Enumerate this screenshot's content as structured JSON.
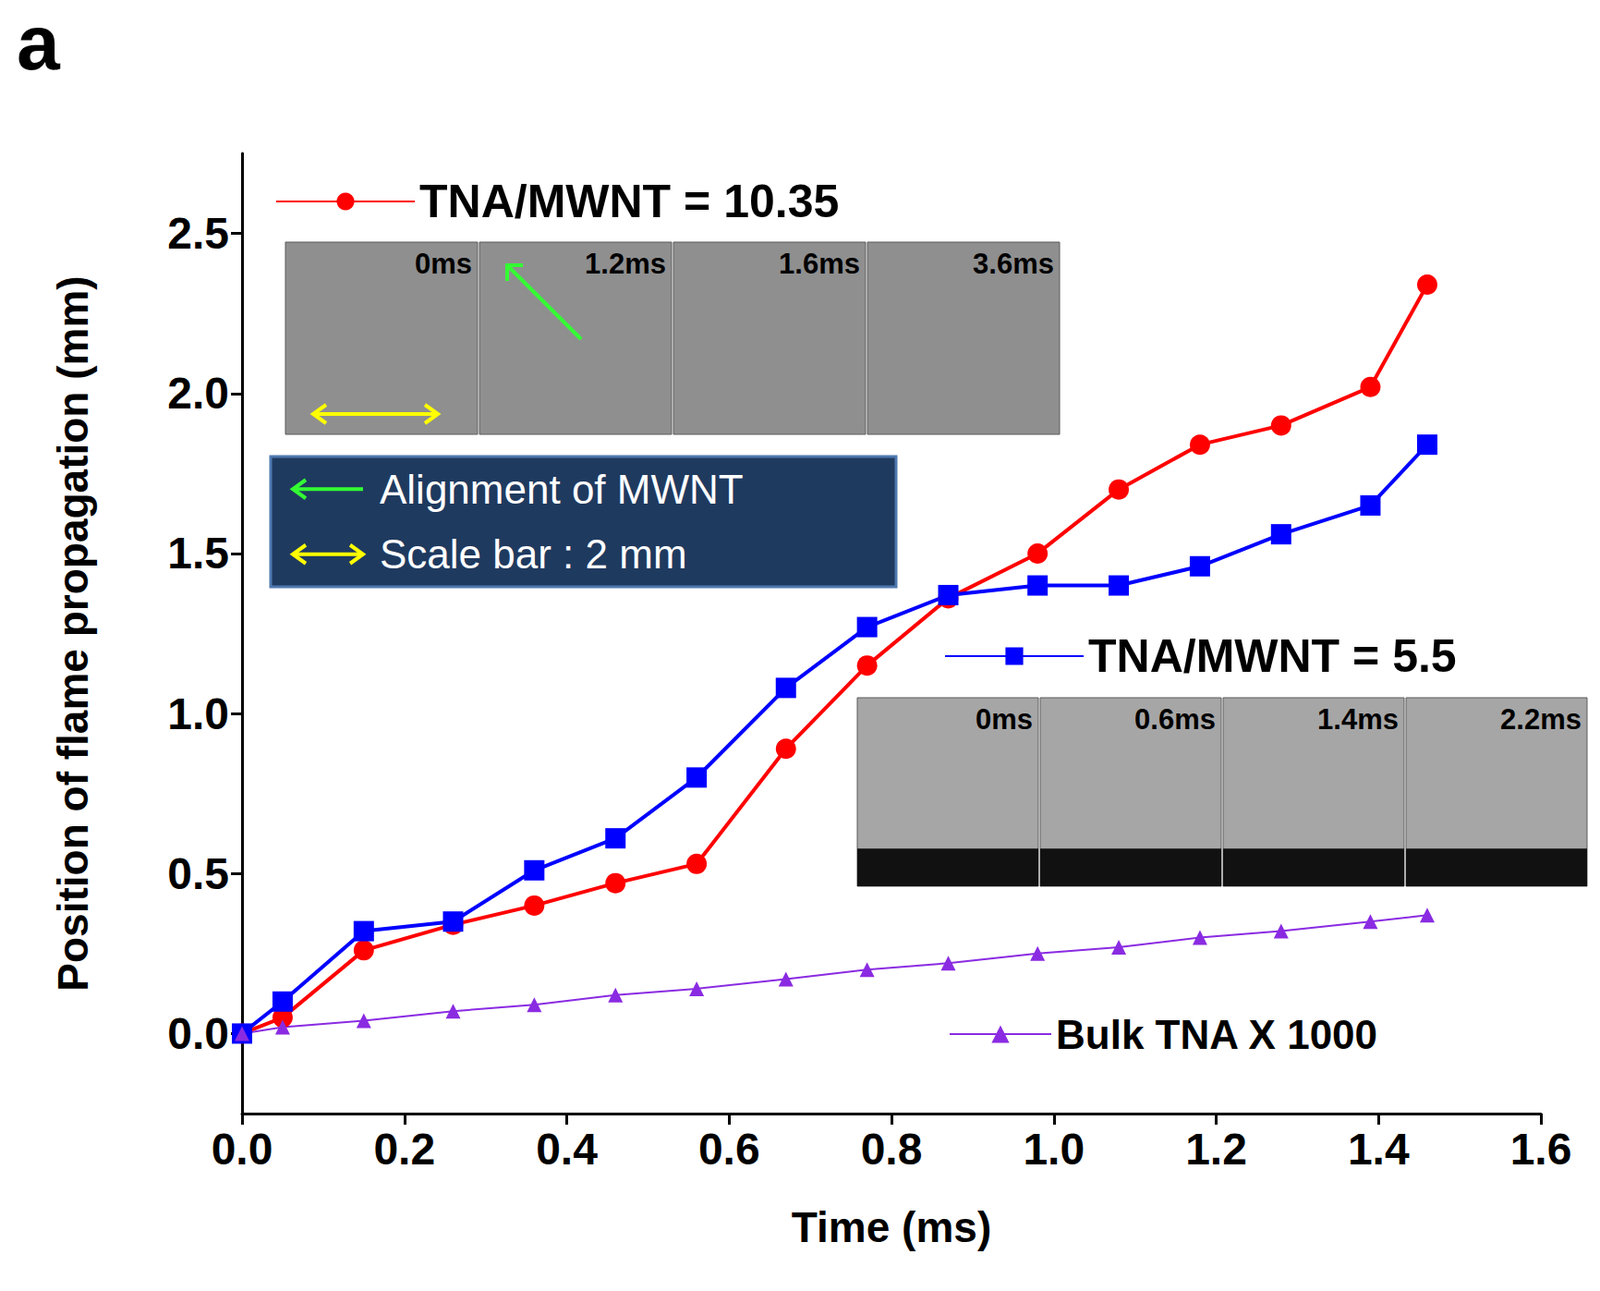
{
  "chart_data": {
    "type": "line",
    "x_label": "Time (ms)",
    "y_label": "Position of flame propagation (mm)",
    "xlim": [
      0,
      1.6
    ],
    "xticks": [
      {
        "value": 0,
        "label": "0.0"
      },
      0.2,
      0.4,
      0.6,
      0.8,
      {
        "value": 1,
        "label": "1.0"
      },
      1.2,
      1.4,
      1.6
    ],
    "ylim": [
      -0.25,
      2.75
    ],
    "yticks": [
      {
        "value": 0,
        "label": "0.0"
      },
      0.5,
      {
        "value": 1,
        "label": "1.0"
      },
      1.5,
      {
        "value": 2,
        "label": "2.0"
      },
      2.5
    ],
    "grid": false,
    "legend": "inside",
    "x": [
      0,
      0.05,
      0.15,
      0.26,
      0.36,
      0.46,
      0.56,
      0.67,
      0.77,
      0.87,
      0.98,
      1.08,
      1.18,
      1.28,
      1.39,
      1.46
    ],
    "series": [
      {
        "name": "TNA/MWNT = 10.35",
        "color": "#ff0000",
        "marker": "circle",
        "line_style": "solid",
        "values": [
          0,
          0.05,
          0.26,
          0.34,
          0.4,
          0.47,
          0.53,
          0.89,
          1.15,
          1.36,
          1.5,
          1.7,
          1.84,
          1.9,
          2.02,
          2.34
        ]
      },
      {
        "name": "TNA/MWNT = 5.5",
        "color": "#0000ff",
        "marker": "square",
        "line_style": "solid",
        "values": [
          0,
          0.1,
          0.32,
          0.35,
          0.51,
          0.61,
          0.8,
          1.08,
          1.27,
          1.37,
          1.4,
          1.4,
          1.46,
          1.56,
          1.65,
          1.84
        ]
      },
      {
        "name": "Bulk TNA X 1000",
        "color": "#8a2be2",
        "marker": "triangle",
        "line_style": "solid",
        "values": [
          0,
          0.02,
          0.04,
          0.07,
          0.09,
          0.12,
          0.14,
          0.17,
          0.2,
          0.22,
          0.25,
          0.27,
          0.3,
          0.32,
          0.35,
          0.37
        ]
      }
    ],
    "annotations": {
      "panel_label": "a",
      "insets": [
        {
          "series": "TNA/MWNT = 10.35",
          "frames": [
            "0ms",
            "1.2ms",
            "1.6ms",
            "3.6ms"
          ]
        },
        {
          "series": "TNA/MWNT = 5.5",
          "frames": [
            "0ms",
            "0.6ms",
            "1.4ms",
            "2.2ms"
          ]
        }
      ],
      "key": [
        "Alignment of MWNT",
        "Scale bar : 2 mm"
      ]
    }
  }
}
